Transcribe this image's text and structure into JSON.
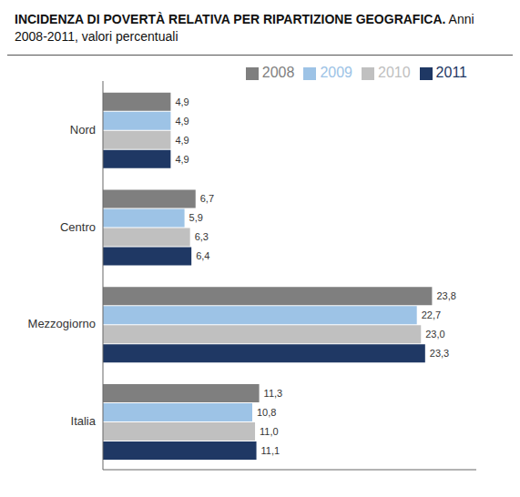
{
  "chart_data": {
    "type": "bar",
    "orientation": "horizontal",
    "title": "INCIDENZA DI POVERTÀ RELATIVA PER RIPARTIZIONE GEOGRAFICA.",
    "subtitle": "Anni 2008-2011, valori percentuali",
    "categories": [
      "Nord",
      "Centro",
      "Mezzogiorno",
      "Italia"
    ],
    "series": [
      {
        "name": "2008",
        "color": "#7f7f7f",
        "values": [
          4.9,
          6.7,
          23.8,
          11.3
        ],
        "value_labels": [
          "4,9",
          "6,7",
          "23,8",
          "11,3"
        ]
      },
      {
        "name": "2009",
        "color": "#9dc3e6",
        "values": [
          4.9,
          5.9,
          22.7,
          10.8
        ],
        "value_labels": [
          "4,9",
          "5,9",
          "22,7",
          "10,8"
        ]
      },
      {
        "name": "2010",
        "color": "#c0c0c0",
        "values": [
          4.9,
          6.3,
          23.0,
          11.0
        ],
        "value_labels": [
          "4,9",
          "6,3",
          "23,0",
          "11,0"
        ]
      },
      {
        "name": "2011",
        "color": "#1f3864",
        "values": [
          4.9,
          6.4,
          23.3,
          11.1
        ],
        "value_labels": [
          "4,9",
          "6,4",
          "23,3",
          "11,1"
        ]
      }
    ],
    "xlim": [
      0,
      27
    ],
    "xticks": [],
    "grid": false,
    "legend": "upper right",
    "data_labels": true,
    "tick_labels": "y"
  }
}
